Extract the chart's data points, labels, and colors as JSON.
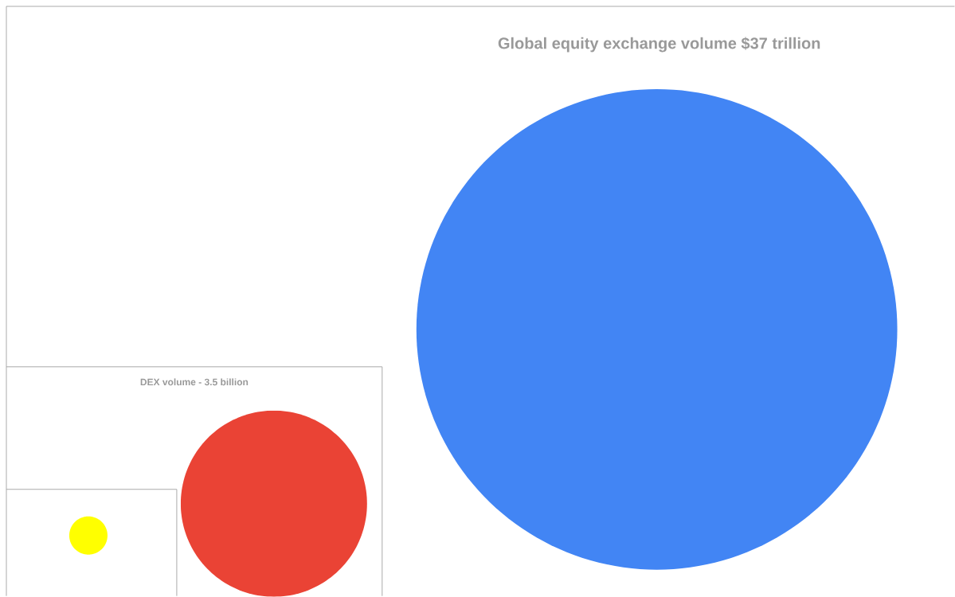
{
  "chart_data": [
    {
      "type": "pie",
      "title": "Global equity exchange volume $37 trillion",
      "categories": [
        null
      ],
      "values": [
        100
      ],
      "colors": [
        "#4285f4"
      ]
    },
    {
      "type": "pie",
      "title": "DEX volume - 3.5 billion",
      "categories": [
        null
      ],
      "values": [
        100
      ],
      "colors": [
        "#ea4335"
      ]
    },
    {
      "type": "pie",
      "categories": [
        null
      ],
      "values": [
        100
      ],
      "colors": [
        "#ffff00"
      ]
    }
  ]
}
